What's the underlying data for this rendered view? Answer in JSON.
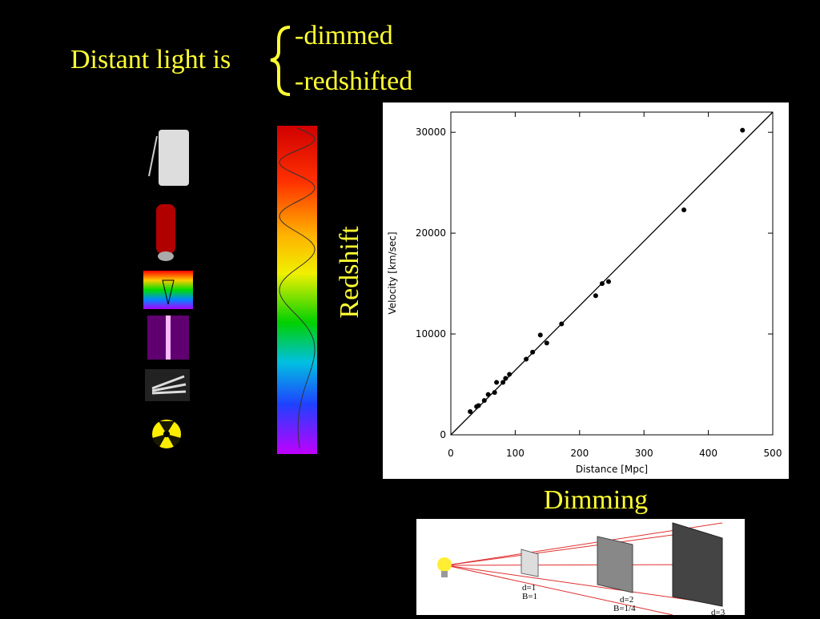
{
  "slide": {
    "title": "Distant light is",
    "items": [
      "-dimmed",
      "-redshifted"
    ],
    "redshift_label": "Redshift",
    "dimming_label": "Dimming",
    "dimming_figure": {
      "labels": [
        "d=1",
        "B=1",
        "d=2",
        "B=1/4",
        "d=3"
      ]
    }
  },
  "chart_data": {
    "type": "scatter",
    "x_label": "Distance [Mpc]",
    "y_label": "Velocity [km/sec]",
    "xlim": [
      0,
      500
    ],
    "ylim": [
      0,
      32000
    ],
    "xticks": [
      0,
      100,
      200,
      300,
      400,
      500
    ],
    "yticks": [
      0,
      10000,
      20000,
      30000
    ],
    "series": [
      {
        "color": "#000000",
        "x": [
          30,
          40,
          43,
          52,
          58,
          68,
          71,
          81,
          85,
          91,
          117,
          127,
          139,
          149,
          172,
          225,
          235,
          245,
          362,
          453
        ],
        "values": [
          2300,
          2800,
          2900,
          3400,
          4000,
          4200,
          5200,
          5200,
          5600,
          6000,
          7500,
          8200,
          9900,
          9100,
          11000,
          13800,
          15000,
          15200,
          22300,
          30200
        ]
      }
    ],
    "fit_line": {
      "x": [
        0,
        500
      ],
      "values": [
        0,
        32000
      ],
      "color": "#000000"
    }
  }
}
